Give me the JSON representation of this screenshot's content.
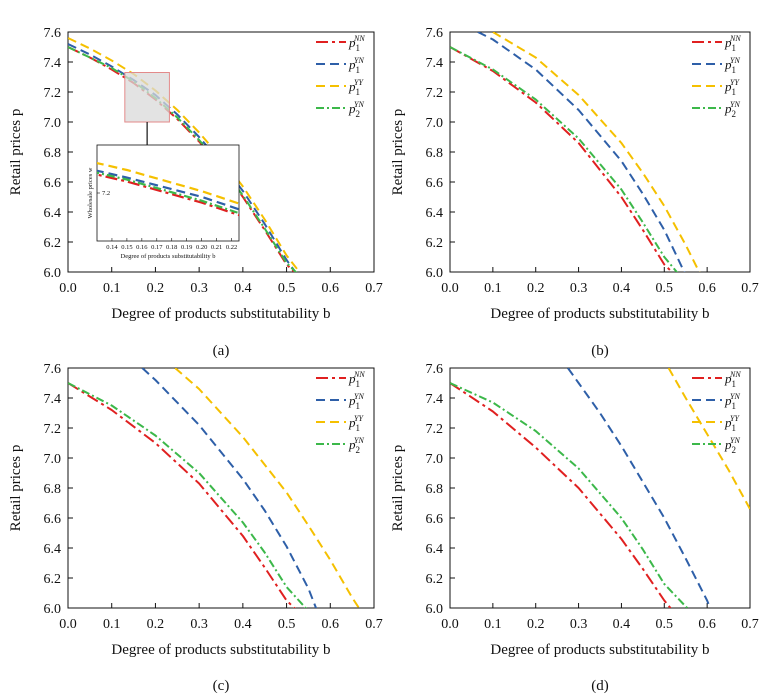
{
  "chart_data": [
    {
      "type": "line",
      "panel": "(a)",
      "xlabel": "Degree of products substitutability b",
      "ylabel": "Retail prices p",
      "xlim": [
        0.0,
        0.7
      ],
      "ylim": [
        6.0,
        7.6
      ],
      "xticks": [
        "0.0",
        "0.1",
        "0.2",
        "0.3",
        "0.4",
        "0.5",
        "0.6",
        "0.7"
      ],
      "yticks": [
        "6.0",
        "6.2",
        "6.4",
        "6.6",
        "6.8",
        "7.0",
        "7.2",
        "7.4",
        "7.6"
      ],
      "legend_position": "top-right",
      "series": [
        {
          "name": "p1NN",
          "legend_base": "p",
          "legend_sub": "1",
          "legend_sup": "NN",
          "color": "#e02020",
          "dash": "12,4,3,4",
          "x": [
            0.0,
            0.05,
            0.1,
            0.15,
            0.2,
            0.25,
            0.3,
            0.35,
            0.4,
            0.45,
            0.5,
            0.525
          ],
          "y": [
            7.5,
            7.43,
            7.35,
            7.26,
            7.15,
            7.02,
            6.87,
            6.7,
            6.5,
            6.28,
            6.05,
            5.98
          ]
        },
        {
          "name": "p1YN",
          "legend_base": "p",
          "legend_sub": "1",
          "legend_sup": "YN",
          "color": "#2e5fa8",
          "dash": "9,5",
          "x": [
            0.0,
            0.05,
            0.1,
            0.15,
            0.2,
            0.25,
            0.3,
            0.35,
            0.4,
            0.45,
            0.5,
            0.53
          ],
          "y": [
            7.52,
            7.45,
            7.37,
            7.28,
            7.18,
            7.05,
            6.9,
            6.73,
            6.54,
            6.32,
            6.08,
            5.96
          ]
        },
        {
          "name": "p1YY",
          "legend_base": "p",
          "legend_sub": "1",
          "legend_sup": "YY",
          "color": "#f5c000",
          "dash": "9,5",
          "x": [
            0.0,
            0.05,
            0.1,
            0.15,
            0.2,
            0.25,
            0.3,
            0.35,
            0.4,
            0.45,
            0.5,
            0.54
          ],
          "y": [
            7.56,
            7.49,
            7.41,
            7.32,
            7.21,
            7.08,
            6.93,
            6.76,
            6.57,
            6.35,
            6.11,
            5.96
          ]
        },
        {
          "name": "p2YN",
          "legend_base": "p",
          "legend_sub": "2",
          "legend_sup": "YN",
          "color": "#3cb84a",
          "dash": "8,3,2,3",
          "x": [
            0.0,
            0.05,
            0.1,
            0.15,
            0.2,
            0.25,
            0.3,
            0.35,
            0.4,
            0.45,
            0.5,
            0.528
          ],
          "y": [
            7.5,
            7.43,
            7.36,
            7.27,
            7.16,
            7.03,
            6.88,
            6.71,
            6.51,
            6.29,
            6.06,
            5.98
          ]
        }
      ],
      "inset": {
        "annotation": "zoom box over b 0.13-0.23, p 7.0-7.33",
        "xlabel": "Degree of products substitutability b",
        "ylabel": "Wholesale prices w",
        "xlim": [
          0.13,
          0.225
        ],
        "ylim": [
          6.95,
          7.45
        ],
        "xticks": [
          "0.14",
          "0.15",
          "0.16",
          "0.17",
          "0.18",
          "0.19",
          "0.20",
          "0.21",
          "0.22"
        ],
        "ytick_label": "7.2",
        "ytick_value": 7.2
      }
    },
    {
      "type": "line",
      "panel": "(b)",
      "xlabel": "Degree of products substitutability b",
      "ylabel": "Retail prices p",
      "xlim": [
        0.0,
        0.7
      ],
      "ylim": [
        6.0,
        7.6
      ],
      "xticks": [
        "0.0",
        "0.1",
        "0.2",
        "0.3",
        "0.4",
        "0.5",
        "0.6",
        "0.7"
      ],
      "yticks": [
        "6.0",
        "6.2",
        "6.4",
        "6.6",
        "6.8",
        "7.0",
        "7.2",
        "7.4",
        "7.6"
      ],
      "legend_position": "top-right",
      "series": [
        {
          "name": "p1NN",
          "legend_base": "p",
          "legend_sub": "1",
          "legend_sup": "NN",
          "color": "#e02020",
          "dash": "12,4,3,4",
          "x": [
            0.0,
            0.1,
            0.2,
            0.3,
            0.4,
            0.45,
            0.5,
            0.525
          ],
          "y": [
            7.5,
            7.34,
            7.13,
            6.86,
            6.5,
            6.28,
            6.05,
            5.98
          ]
        },
        {
          "name": "p1YN",
          "legend_base": "p",
          "legend_sub": "1",
          "legend_sup": "YN",
          "color": "#2e5fa8",
          "dash": "9,5",
          "x": [
            0.065,
            0.1,
            0.2,
            0.3,
            0.4,
            0.45,
            0.5,
            0.55
          ],
          "y": [
            7.6,
            7.55,
            7.35,
            7.08,
            6.74,
            6.52,
            6.28,
            5.98
          ]
        },
        {
          "name": "p1YY",
          "legend_base": "p",
          "legend_sub": "1",
          "legend_sup": "YY",
          "color": "#f5c000",
          "dash": "9,5",
          "x": [
            0.1,
            0.2,
            0.3,
            0.4,
            0.45,
            0.5,
            0.55,
            0.585
          ],
          "y": [
            7.6,
            7.43,
            7.18,
            6.86,
            6.66,
            6.44,
            6.18,
            5.98
          ]
        },
        {
          "name": "p2YN",
          "legend_base": "p",
          "legend_sub": "2",
          "legend_sup": "YN",
          "color": "#3cb84a",
          "dash": "8,3,2,3",
          "x": [
            0.0,
            0.1,
            0.2,
            0.3,
            0.4,
            0.45,
            0.5,
            0.535
          ],
          "y": [
            7.5,
            7.35,
            7.15,
            6.89,
            6.55,
            6.33,
            6.1,
            5.98
          ]
        }
      ]
    },
    {
      "type": "line",
      "panel": "(c)",
      "xlabel": "Degree of products substitutability b",
      "ylabel": "Retail prices p",
      "xlim": [
        0.0,
        0.7
      ],
      "ylim": [
        6.0,
        7.6
      ],
      "xticks": [
        "0.0",
        "0.1",
        "0.2",
        "0.3",
        "0.4",
        "0.5",
        "0.6",
        "0.7"
      ],
      "yticks": [
        "6.0",
        "6.2",
        "6.4",
        "6.6",
        "6.8",
        "7.0",
        "7.2",
        "7.4",
        "7.6"
      ],
      "legend_position": "top-right",
      "series": [
        {
          "name": "p1NN",
          "legend_base": "p",
          "legend_sub": "1",
          "legend_sup": "NN",
          "color": "#e02020",
          "dash": "12,4,3,4",
          "x": [
            0.0,
            0.1,
            0.2,
            0.3,
            0.4,
            0.45,
            0.5,
            0.525
          ],
          "y": [
            7.5,
            7.32,
            7.1,
            6.83,
            6.48,
            6.27,
            6.05,
            5.98
          ]
        },
        {
          "name": "p1YN",
          "legend_base": "p",
          "legend_sub": "1",
          "legend_sup": "YN",
          "color": "#2e5fa8",
          "dash": "9,5",
          "x": [
            0.17,
            0.2,
            0.3,
            0.4,
            0.45,
            0.5,
            0.55,
            0.57
          ],
          "y": [
            7.6,
            7.52,
            7.22,
            6.86,
            6.65,
            6.41,
            6.13,
            5.98
          ]
        },
        {
          "name": "p1YY",
          "legend_base": "p",
          "legend_sub": "1",
          "legend_sup": "YY",
          "color": "#f5c000",
          "dash": "9,5",
          "x": [
            0.245,
            0.3,
            0.4,
            0.5,
            0.55,
            0.6,
            0.65,
            0.67
          ],
          "y": [
            7.6,
            7.46,
            7.14,
            6.77,
            6.55,
            6.32,
            6.07,
            5.98
          ]
        },
        {
          "name": "p2YN",
          "legend_base": "p",
          "legend_sub": "2",
          "legend_sup": "YN",
          "color": "#3cb84a",
          "dash": "8,3,2,3",
          "x": [
            0.0,
            0.1,
            0.2,
            0.3,
            0.4,
            0.45,
            0.5,
            0.55
          ],
          "y": [
            7.5,
            7.35,
            7.15,
            6.9,
            6.57,
            6.37,
            6.14,
            5.98
          ]
        }
      ]
    },
    {
      "type": "line",
      "panel": "(d)",
      "xlabel": "Degree of products substitutability b",
      "ylabel": "Retail prices p",
      "xlim": [
        0.0,
        0.7
      ],
      "ylim": [
        6.0,
        7.6
      ],
      "xticks": [
        "0.0",
        "0.1",
        "0.2",
        "0.3",
        "0.4",
        "0.5",
        "0.6",
        "0.7"
      ],
      "yticks": [
        "6.0",
        "6.2",
        "6.4",
        "6.6",
        "6.8",
        "7.0",
        "7.2",
        "7.4",
        "7.6"
      ],
      "legend_position": "top-right",
      "series": [
        {
          "name": "p1NN",
          "legend_base": "p",
          "legend_sub": "1",
          "legend_sup": "NN",
          "color": "#e02020",
          "dash": "12,4,3,4",
          "x": [
            0.0,
            0.1,
            0.2,
            0.3,
            0.4,
            0.45,
            0.5,
            0.52
          ],
          "y": [
            7.5,
            7.31,
            7.07,
            6.8,
            6.46,
            6.26,
            6.05,
            5.98
          ]
        },
        {
          "name": "p1YN",
          "legend_base": "p",
          "legend_sub": "1",
          "legend_sup": "YN",
          "color": "#2e5fa8",
          "dash": "9,5",
          "x": [
            0.275,
            0.3,
            0.35,
            0.4,
            0.45,
            0.5,
            0.55,
            0.6,
            0.61
          ],
          "y": [
            7.6,
            7.5,
            7.3,
            7.08,
            6.84,
            6.6,
            6.33,
            6.05,
            5.98
          ]
        },
        {
          "name": "p1YY",
          "legend_base": "p",
          "legend_sub": "1",
          "legend_sup": "YY",
          "color": "#f5c000",
          "dash": "9,5",
          "x": [
            0.51,
            0.55,
            0.6,
            0.65,
            0.7
          ],
          "y": [
            7.6,
            7.4,
            7.16,
            6.92,
            6.66
          ]
        },
        {
          "name": "p2YN",
          "legend_base": "p",
          "legend_sub": "2",
          "legend_sup": "YN",
          "color": "#3cb84a",
          "dash": "8,3,2,3",
          "x": [
            0.0,
            0.1,
            0.2,
            0.3,
            0.4,
            0.45,
            0.5,
            0.56
          ],
          "y": [
            7.5,
            7.37,
            7.18,
            6.93,
            6.6,
            6.39,
            6.16,
            5.98
          ]
        }
      ]
    }
  ]
}
